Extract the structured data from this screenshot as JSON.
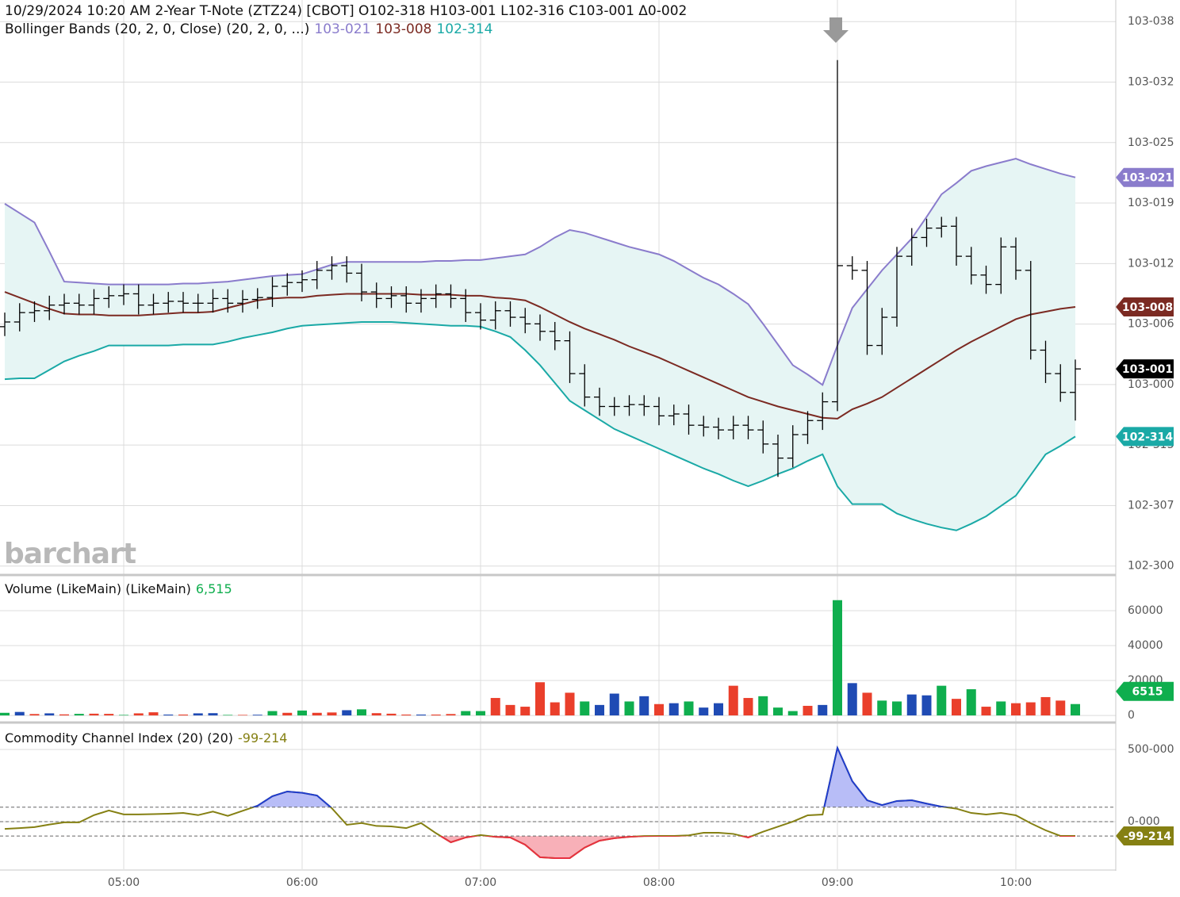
{
  "chart_data": [
    {
      "type": "ohlc",
      "title": "10/29/2024 10:20 AM 2-Year T-Note (ZTZ24) [CBOT] O102-318 H103-001 L102-316 C103-001 Δ0-002",
      "indicator": "Bollinger Bands (20, 2, 0, Close)  (20, 2, 0, ...)",
      "watermark": "barchart",
      "categories": [
        null,
        null,
        null,
        null,
        null,
        null,
        null,
        null,
        "05:00",
        null,
        null,
        null,
        null,
        null,
        null,
        null,
        null,
        null,
        null,
        null,
        "06:00",
        null,
        null,
        null,
        null,
        null,
        null,
        null,
        null,
        null,
        null,
        null,
        "07:00",
        null,
        null,
        null,
        null,
        null,
        null,
        null,
        null,
        null,
        null,
        null,
        "08:00",
        null,
        null,
        null,
        null,
        null,
        null,
        null,
        null,
        null,
        null,
        null,
        "09:00",
        null,
        null,
        null,
        null,
        null,
        null,
        null,
        null,
        null,
        null,
        null,
        "10:00",
        null,
        null,
        null,
        null
      ],
      "open": [
        32.55,
        32.6,
        32.7,
        32.72,
        32.78,
        32.8,
        32.78,
        32.85,
        32.88,
        32.9,
        32.78,
        32.8,
        32.82,
        32.8,
        32.8,
        32.85,
        32.8,
        32.84,
        32.86,
        32.98,
        33.02,
        33.05,
        33.15,
        33.2,
        33.12,
        32.92,
        32.85,
        32.88,
        32.8,
        32.85,
        32.9,
        32.85,
        32.7,
        32.62,
        32.72,
        32.65,
        32.58,
        32.5,
        32.4,
        32.05,
        31.8,
        31.7,
        31.7,
        31.72,
        31.7,
        31.6,
        31.62,
        31.5,
        31.48,
        31.45,
        31.5,
        31.45,
        31.3,
        31.15,
        31.4,
        31.55,
        31.75,
        33.2,
        33.15,
        32.35,
        32.65,
        33.3,
        33.5,
        33.6,
        33.62,
        33.3,
        33.1,
        33.0,
        33.4,
        33.15,
        32.3,
        32.05,
        31.85
      ],
      "high": [
        32.7,
        32.8,
        32.82,
        32.88,
        32.9,
        32.9,
        32.95,
        32.98,
        33.0,
        33.0,
        32.9,
        32.92,
        32.92,
        32.9,
        32.95,
        32.95,
        32.94,
        32.96,
        33.08,
        33.12,
        33.15,
        33.25,
        33.3,
        33.3,
        33.22,
        33.02,
        32.98,
        32.98,
        32.95,
        33.0,
        33.0,
        32.95,
        32.8,
        32.82,
        32.82,
        32.75,
        32.68,
        32.6,
        32.5,
        32.15,
        31.9,
        31.8,
        31.82,
        31.82,
        31.8,
        31.72,
        31.72,
        31.6,
        31.58,
        31.6,
        31.6,
        31.55,
        31.4,
        31.5,
        31.65,
        31.85,
        35.39,
        33.3,
        33.25,
        32.75,
        33.4,
        33.6,
        33.7,
        33.72,
        33.72,
        33.4,
        33.2,
        33.5,
        33.5,
        33.25,
        32.4,
        32.15,
        32.2
      ],
      "low": [
        32.45,
        32.5,
        32.6,
        32.62,
        32.68,
        32.68,
        32.68,
        32.75,
        32.78,
        32.68,
        32.68,
        32.7,
        32.7,
        32.7,
        32.7,
        32.7,
        32.7,
        32.74,
        32.76,
        32.88,
        32.92,
        32.95,
        33.05,
        33.02,
        32.82,
        32.75,
        32.75,
        32.7,
        32.7,
        32.75,
        32.75,
        32.6,
        32.52,
        32.52,
        32.55,
        32.48,
        32.4,
        32.3,
        31.95,
        31.7,
        31.6,
        31.6,
        31.6,
        31.6,
        31.5,
        31.5,
        31.4,
        31.38,
        31.35,
        31.35,
        31.35,
        31.2,
        30.95,
        31.05,
        31.3,
        31.45,
        31.65,
        33.05,
        32.25,
        32.25,
        32.55,
        33.2,
        33.4,
        33.5,
        33.2,
        33.0,
        32.9,
        32.9,
        33.05,
        32.2,
        31.95,
        31.75,
        31.55
      ],
      "close": [
        32.6,
        32.7,
        32.72,
        32.78,
        32.8,
        32.78,
        32.85,
        32.88,
        32.9,
        32.78,
        32.8,
        32.82,
        32.8,
        32.8,
        32.85,
        32.8,
        32.84,
        32.86,
        32.98,
        33.02,
        33.05,
        33.15,
        33.2,
        33.12,
        32.92,
        32.85,
        32.88,
        32.8,
        32.85,
        32.9,
        32.85,
        32.7,
        32.62,
        32.72,
        32.65,
        32.58,
        32.5,
        32.4,
        32.05,
        31.8,
        31.7,
        31.7,
        31.72,
        31.7,
        31.6,
        31.62,
        31.5,
        31.48,
        31.45,
        31.5,
        31.45,
        31.3,
        31.15,
        31.4,
        31.55,
        31.75,
        33.2,
        33.15,
        32.35,
        32.65,
        33.3,
        33.5,
        33.6,
        33.62,
        33.3,
        33.1,
        33.0,
        33.4,
        33.15,
        32.3,
        32.05,
        31.85,
        32.1
      ],
      "close_color": "#000000",
      "last_close_label": "103-001",
      "band_fill": "#e6f5f4",
      "bands": [
        {
          "color": "#8a7ccc",
          "last_label": "103-021",
          "values": [
            33.86,
            33.76,
            33.66,
            33.35,
            33.03,
            33.02,
            33.01,
            33.0,
            33.0,
            33.0,
            33.0,
            33.0,
            33.01,
            33.01,
            33.02,
            33.03,
            33.05,
            33.07,
            33.09,
            33.1,
            33.11,
            33.16,
            33.21,
            33.24,
            33.24,
            33.24,
            33.24,
            33.24,
            33.24,
            33.25,
            33.25,
            33.26,
            33.26,
            33.28,
            33.3,
            33.32,
            33.4,
            33.5,
            33.58,
            33.55,
            33.5,
            33.45,
            33.4,
            33.36,
            33.32,
            33.25,
            33.16,
            33.07,
            33.0,
            32.9,
            32.79,
            32.58,
            32.36,
            32.14,
            32.04,
            31.93,
            32.35,
            32.75,
            32.95,
            33.15,
            33.32,
            33.49,
            33.72,
            33.96,
            34.08,
            34.21,
            34.26,
            34.3,
            34.34,
            34.28,
            34.23,
            34.18,
            34.14
          ]
        },
        {
          "color": "#7b2a22",
          "last_label": "103-008",
          "values": [
            32.92,
            32.86,
            32.8,
            32.74,
            32.69,
            32.68,
            32.68,
            32.67,
            32.67,
            32.67,
            32.68,
            32.69,
            32.7,
            32.7,
            32.71,
            32.75,
            32.79,
            32.83,
            32.85,
            32.86,
            32.86,
            32.88,
            32.89,
            32.9,
            32.9,
            32.9,
            32.9,
            32.9,
            32.89,
            32.89,
            32.89,
            32.88,
            32.88,
            32.86,
            32.85,
            32.83,
            32.76,
            32.68,
            32.6,
            32.53,
            32.47,
            32.41,
            32.34,
            32.28,
            32.22,
            32.15,
            32.08,
            32.01,
            31.94,
            31.87,
            31.8,
            31.75,
            31.7,
            31.66,
            31.62,
            31.58,
            31.57,
            31.67,
            31.73,
            31.8,
            31.9,
            32.0,
            32.1,
            32.2,
            32.3,
            32.39,
            32.47,
            32.55,
            32.63,
            32.68,
            32.71,
            32.74,
            32.76
          ]
        },
        {
          "color": "#1aa9a6",
          "last_label": "102-314",
          "values": [
            31.99,
            32.0,
            32.0,
            32.09,
            32.18,
            32.24,
            32.29,
            32.35,
            32.35,
            32.35,
            32.35,
            32.35,
            32.36,
            32.36,
            32.36,
            32.39,
            32.43,
            32.46,
            32.49,
            32.53,
            32.56,
            32.57,
            32.58,
            32.59,
            32.6,
            32.6,
            32.6,
            32.59,
            32.58,
            32.57,
            32.56,
            32.56,
            32.55,
            32.5,
            32.44,
            32.3,
            32.14,
            31.95,
            31.76,
            31.66,
            31.56,
            31.46,
            31.39,
            31.32,
            31.25,
            31.18,
            31.11,
            31.04,
            30.98,
            30.91,
            30.85,
            30.91,
            30.98,
            31.04,
            31.12,
            31.19,
            30.85,
            30.66,
            30.66,
            30.66,
            30.56,
            30.5,
            30.45,
            30.41,
            30.38,
            30.45,
            30.53,
            30.64,
            30.75,
            30.97,
            31.19,
            31.28,
            31.38
          ]
        }
      ],
      "ylim": [
        29.93,
        36.03
      ],
      "yticks": [
        {
          "value": 30.0,
          "label": "102-300"
        },
        {
          "value": 30.644,
          "label": "102-307"
        },
        {
          "value": 31.289,
          "label": "102-315"
        },
        {
          "value": 31.933,
          "label": "103-000"
        },
        {
          "value": 32.578,
          "label": "103-006"
        },
        {
          "value": 33.222,
          "label": "103-012"
        },
        {
          "value": 33.867,
          "label": "103-019"
        },
        {
          "value": 34.511,
          "label": "103-025"
        },
        {
          "value": 35.156,
          "label": "103-032"
        },
        {
          "value": 35.8,
          "label": "103-038"
        }
      ],
      "grid": true
    },
    {
      "type": "bar",
      "title": "Volume (LikeMain)  (LikeMain)",
      "last_label": "6,515",
      "badge_label": "6515",
      "badge_color": "#0fae4e",
      "values": [
        1500,
        2000,
        800,
        1200,
        600,
        900,
        1000,
        900,
        300,
        1200,
        1800,
        500,
        500,
        1200,
        1300,
        300,
        300,
        400,
        2500,
        1500,
        2800,
        1500,
        1700,
        3000,
        3500,
        1300,
        1000,
        500,
        500,
        500,
        800,
        2500,
        2500,
        10000,
        6000,
        5000,
        19000,
        7500,
        13000,
        8000,
        6000,
        12500,
        8000,
        11000,
        6500,
        7000,
        8000,
        4500,
        7000,
        17000,
        10000,
        11000,
        4500,
        2500,
        5500,
        6000,
        66000,
        18500,
        13000,
        8500,
        8000,
        12000,
        11500,
        17000,
        9500,
        15000,
        5000,
        8000,
        7000,
        7500,
        10500,
        8500,
        6515
      ],
      "colors": [
        "#0fae4e",
        "#1f4bb4",
        "#ea3f2b",
        "#1f4bb4",
        "#ea3f2b",
        "#0fae4e",
        "#ea3f2b",
        "#ea3f2b",
        "#0fae4e",
        "#ea3f2b",
        "#ea3f2b",
        "#1f4bb4",
        "#ea3f2b",
        "#1f4bb4",
        "#1f4bb4",
        "#0fae4e",
        "#ea3f2b",
        "#1f4bb4",
        "#0fae4e",
        "#ea3f2b",
        "#0fae4e",
        "#ea3f2b",
        "#ea3f2b",
        "#1f4bb4",
        "#0fae4e",
        "#ea3f2b",
        "#ea3f2b",
        "#ea3f2b",
        "#1f4bb4",
        "#ea3f2b",
        "#ea3f2b",
        "#0fae4e",
        "#0fae4e",
        "#ea3f2b",
        "#ea3f2b",
        "#ea3f2b",
        "#ea3f2b",
        "#ea3f2b",
        "#ea3f2b",
        "#0fae4e",
        "#1f4bb4",
        "#1f4bb4",
        "#0fae4e",
        "#1f4bb4",
        "#ea3f2b",
        "#1f4bb4",
        "#0fae4e",
        "#1f4bb4",
        "#1f4bb4",
        "#ea3f2b",
        "#ea3f2b",
        "#0fae4e",
        "#0fae4e",
        "#0fae4e",
        "#ea3f2b",
        "#1f4bb4",
        "#0fae4e",
        "#1f4bb4",
        "#ea3f2b",
        "#0fae4e",
        "#0fae4e",
        "#1f4bb4",
        "#1f4bb4",
        "#0fae4e",
        "#ea3f2b",
        "#0fae4e",
        "#ea3f2b",
        "#0fae4e",
        "#ea3f2b",
        "#ea3f2b",
        "#ea3f2b",
        "#ea3f2b",
        "#0fae4e"
      ],
      "ylim": [
        -3600,
        79500
      ],
      "yticks": [
        0,
        20000,
        40000,
        60000
      ],
      "grid": true
    },
    {
      "type": "line",
      "title": "Commodity Channel Index (20)  (20)",
      "last_label": "-99-214",
      "color": "#858013",
      "above_color": "#1f3cd0",
      "above_fill": "#b8bdf7",
      "below_color": "#e83040",
      "below_fill": "#f8b0b8",
      "values": [
        -50,
        -45,
        -38,
        -20,
        -5,
        -5,
        45,
        77,
        50,
        50,
        52,
        55,
        60,
        45,
        70,
        40,
        75,
        110,
        176,
        209,
        200,
        181,
        93,
        -22,
        -10,
        -30,
        -33,
        -45,
        -10,
        -80,
        -143,
        -110,
        -93,
        -105,
        -110,
        -160,
        -247,
        -253,
        -253,
        -180,
        -132,
        -115,
        -105,
        -100,
        -99,
        -99,
        -95,
        -77,
        -77,
        -85,
        -110,
        -70,
        -35,
        0,
        44,
        49,
        511,
        280,
        148,
        115,
        143,
        148,
        125,
        104,
        90,
        60,
        49,
        60,
        44,
        -11,
        -60,
        -99,
        -99.214
      ],
      "levels": [
        100,
        0,
        -100
      ],
      "ylim": [
        -330,
        676
      ],
      "yticks": [
        {
          "value": 0,
          "label": "0-000"
        },
        {
          "value": 500,
          "label": "500-000"
        }
      ],
      "grid": true
    }
  ]
}
